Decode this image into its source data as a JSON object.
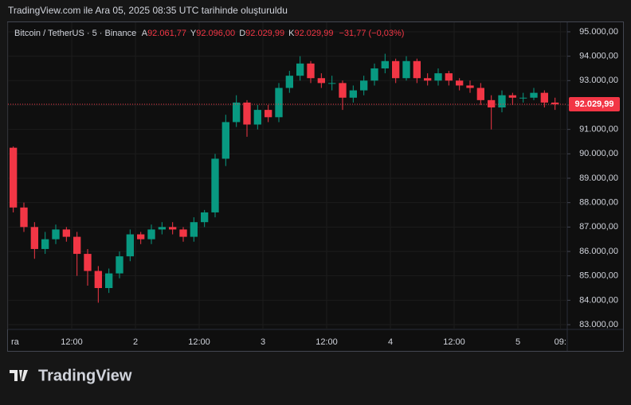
{
  "header": "TradingView.com ile Ara 05, 2025 08:35 UTC tarihinde oluşturuldu",
  "chart_data": {
    "type": "candlestick",
    "legend": {
      "symbol": "Bitcoin / TetherUS · 5 · Binance",
      "open_label": "A",
      "open": "92.061,77",
      "high_label": "Y",
      "high": "92.096,00",
      "low_label": "D",
      "low": "92.029,99",
      "close_label": "K",
      "close": "92.029,99",
      "change": "−31,77 (−0,03%)"
    },
    "up_color": "#089981",
    "down_color": "#f23645",
    "x": [
      1,
      3,
      5,
      7,
      9,
      11,
      13,
      15,
      17,
      19,
      21,
      23,
      25,
      27,
      29,
      31,
      33,
      35,
      37,
      39,
      41,
      43,
      45,
      47,
      49,
      51,
      53,
      55,
      57,
      59,
      61,
      63,
      65,
      67,
      69,
      71,
      73,
      75,
      77,
      79,
      81,
      83,
      85,
      87,
      89,
      91,
      93,
      95,
      97,
      99,
      101,
      103
    ],
    "open": [
      90250,
      87800,
      87000,
      86100,
      86500,
      86900,
      86600,
      85900,
      85200,
      84500,
      85100,
      85800,
      86700,
      86500,
      86900,
      87000,
      86900,
      86600,
      87200,
      87600,
      89800,
      91300,
      92100,
      91200,
      91800,
      91500,
      92700,
      93200,
      93700,
      93100,
      92900,
      92900,
      92300,
      92600,
      93000,
      93500,
      93800,
      93100,
      93800,
      93100,
      93000,
      93300,
      93000,
      92800,
      92700,
      92200,
      91900,
      92400,
      92300,
      92300,
      92500,
      92100
    ],
    "high": [
      90300,
      88000,
      87200,
      86800,
      87100,
      87000,
      86800,
      86100,
      85400,
      85300,
      86000,
      86900,
      86800,
      87100,
      87200,
      87200,
      87000,
      87400,
      87700,
      90000,
      91600,
      92400,
      92200,
      92000,
      92000,
      92900,
      93400,
      94000,
      93800,
      93300,
      93200,
      93000,
      92800,
      93200,
      93700,
      94100,
      93900,
      94000,
      93900,
      93300,
      93500,
      93400,
      93100,
      93000,
      92900,
      92400,
      92600,
      92500,
      92500,
      92700,
      92600,
      92300
    ],
    "low": [
      87600,
      86800,
      85700,
      85900,
      86300,
      86400,
      85000,
      84600,
      83900,
      84300,
      84900,
      85600,
      86300,
      86300,
      86700,
      86700,
      86400,
      86400,
      87000,
      87400,
      89500,
      91100,
      90700,
      91000,
      91300,
      91300,
      92500,
      93000,
      92900,
      92700,
      92600,
      91800,
      92100,
      92400,
      92800,
      93300,
      92900,
      93000,
      92900,
      92800,
      92800,
      92800,
      92600,
      92500,
      92000,
      91000,
      91700,
      92000,
      92100,
      92200,
      91900,
      91800
    ],
    "close": [
      87800,
      87000,
      86100,
      86500,
      86900,
      86600,
      85900,
      85200,
      84500,
      85100,
      85800,
      86700,
      86500,
      86900,
      87000,
      86900,
      86600,
      87200,
      87600,
      89800,
      91300,
      92100,
      91200,
      91800,
      91500,
      92700,
      93200,
      93700,
      93100,
      92900,
      92900,
      92300,
      92600,
      93000,
      93500,
      93800,
      93100,
      93800,
      93100,
      93000,
      93300,
      93000,
      92800,
      92700,
      92200,
      91900,
      92400,
      92300,
      92300,
      92500,
      92100,
      92030
    ],
    "xlim": [
      0,
      105.3
    ],
    "xticks": [
      {
        "value": 0,
        "label": "ra"
      },
      {
        "value": 12,
        "label": "12:00"
      },
      {
        "value": 24,
        "label": "2"
      },
      {
        "value": 36,
        "label": "12:00"
      },
      {
        "value": 48,
        "label": "3"
      },
      {
        "value": 60,
        "label": "12:00"
      },
      {
        "value": 72,
        "label": "4"
      },
      {
        "value": 84,
        "label": "12:00"
      },
      {
        "value": 96,
        "label": "5"
      },
      {
        "value": 104,
        "label": "09:"
      }
    ],
    "ylim": [
      82805,
      95390
    ],
    "yticks": [
      {
        "value": 83000,
        "label": "83.000,00"
      },
      {
        "value": 84000,
        "label": "84.000,00"
      },
      {
        "value": 85000,
        "label": "85.000,00"
      },
      {
        "value": 86000,
        "label": "86.000,00"
      },
      {
        "value": 87000,
        "label": "87.000,00"
      },
      {
        "value": 88000,
        "label": "88.000,00"
      },
      {
        "value": 89000,
        "label": "89.000,00"
      },
      {
        "value": 90000,
        "label": "90.000,00"
      },
      {
        "value": 91000,
        "label": "91.000,00"
      },
      {
        "value": 92000,
        "label": "92.000,00"
      },
      {
        "value": 93000,
        "label": "93.000,00"
      },
      {
        "value": 94000,
        "label": "94.000,00"
      },
      {
        "value": 95000,
        "label": "95.000,00"
      }
    ],
    "last_price": {
      "value": 92029.99,
      "label": "92.029,99"
    }
  },
  "logo": "TradingView"
}
